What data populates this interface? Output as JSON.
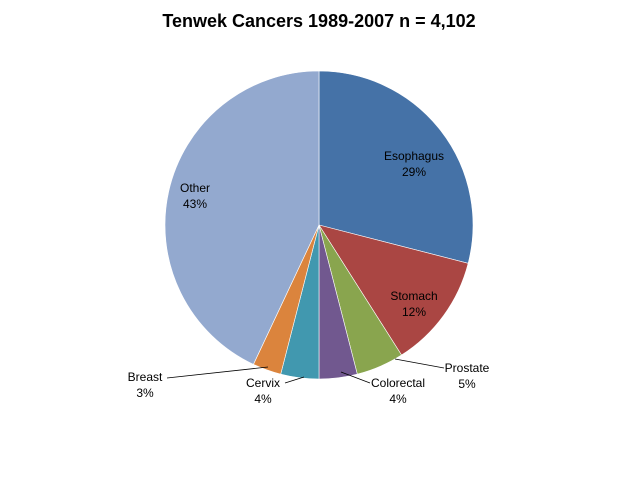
{
  "chart_data": {
    "type": "pie",
    "title": "Tenwek Cancers 1989-2007  n = 4,102",
    "slices": [
      {
        "name": "Esophagus",
        "value": 29,
        "label": "29%",
        "color": "#4572A7"
      },
      {
        "name": "Stomach",
        "value": 12,
        "label": "12%",
        "color": "#AA4643"
      },
      {
        "name": "Prostate",
        "value": 5,
        "label": "5%",
        "color": "#89A54E"
      },
      {
        "name": "Colorectal",
        "value": 4,
        "label": "4%",
        "color": "#71588F"
      },
      {
        "name": "Cervix",
        "value": 4,
        "label": "4%",
        "color": "#4198AF"
      },
      {
        "name": "Breast",
        "value": 3,
        "label": "3%",
        "color": "#DB843D"
      },
      {
        "name": "Other",
        "value": 43,
        "label": "43%",
        "color": "#93A9CF"
      }
    ],
    "start_angle": "12 o'clock",
    "direction": "clockwise"
  }
}
